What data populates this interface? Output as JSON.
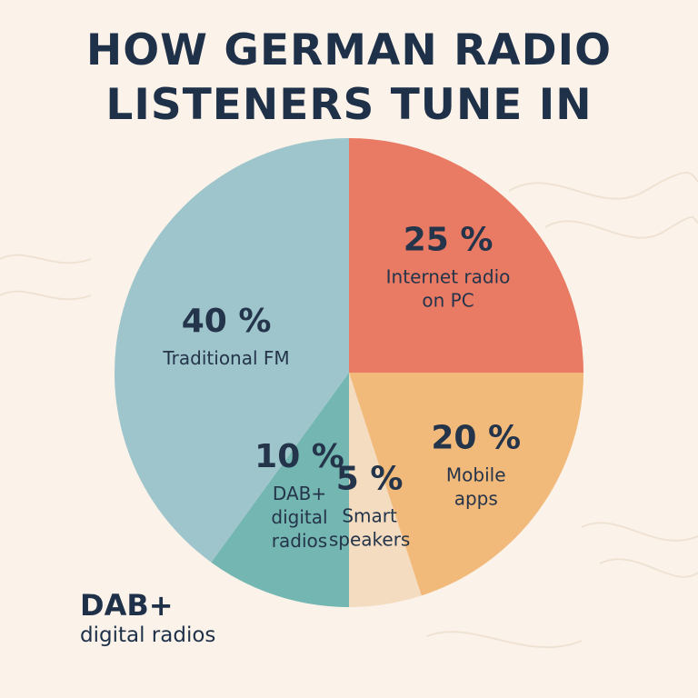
{
  "chart_data": {
    "type": "pie",
    "title_lines": [
      "HOW GERMAN RADIO",
      "LISTENERS TUNE IN"
    ],
    "slices": [
      {
        "value": 25,
        "pct_label": "25 %",
        "label_lines": [
          "Internet radio",
          "on PC"
        ],
        "color": "#e97a64"
      },
      {
        "value": 20,
        "pct_label": "20 %",
        "label_lines": [
          "Mobile",
          "apps"
        ],
        "color": "#f1b97a"
      },
      {
        "value": 5,
        "pct_label": "5 %",
        "label_lines": [
          "Smart",
          "speakers"
        ],
        "color": "#f4dcc0"
      },
      {
        "value": 10,
        "pct_label": "10 %",
        "label_lines": [
          "DAB+",
          "digital",
          "radios"
        ],
        "color": "#74b6b1"
      },
      {
        "value": 40,
        "pct_label": "40 %",
        "label_lines": [
          "Traditional FM"
        ],
        "color": "#9ec5cb"
      }
    ]
  },
  "footer": {
    "line1": "DAB+",
    "line2": "digital radios"
  },
  "colors": {
    "background": "#fbf3ea",
    "text": "#1f3149",
    "wave": "#efe2d3"
  }
}
